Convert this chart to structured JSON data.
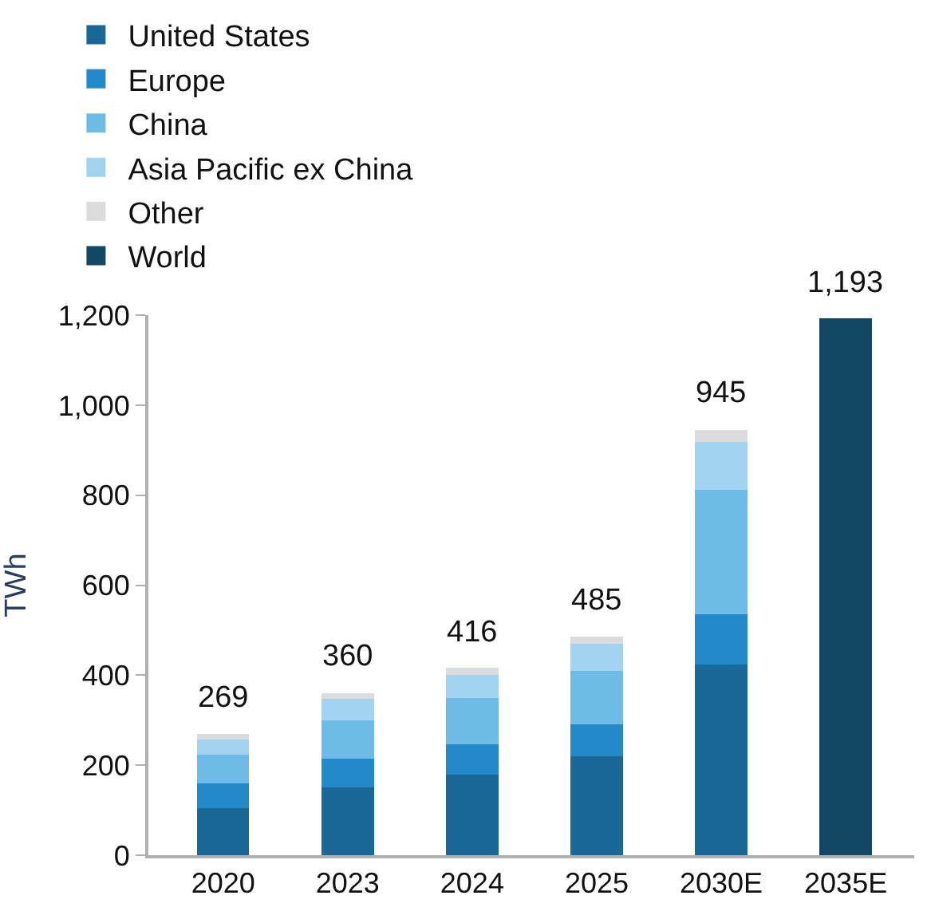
{
  "chart_data": {
    "type": "bar",
    "stacked": true,
    "ylabel": "TWh",
    "categories": [
      "2020",
      "2023",
      "2024",
      "2025",
      "2030E",
      "2035E"
    ],
    "series": [
      {
        "name": "United States",
        "color": "#1a6898",
        "values": [
          104,
          150,
          179,
          219,
          423,
          null
        ]
      },
      {
        "name": "Europe",
        "color": "#228ac9",
        "values": [
          56,
          65,
          68,
          72,
          112,
          null
        ]
      },
      {
        "name": "China",
        "color": "#6fbbe8",
        "values": [
          63,
          85,
          102,
          118,
          277,
          null
        ]
      },
      {
        "name": "Asia Pacific ex China",
        "color": "#a2d3f1",
        "values": [
          34,
          48,
          52,
          60,
          106,
          null
        ]
      },
      {
        "name": "Other",
        "color": "#dcdcdc",
        "values": [
          12,
          12,
          15,
          16,
          27,
          null
        ]
      },
      {
        "name": "World",
        "color": "#134864",
        "values": [
          null,
          null,
          null,
          null,
          null,
          1193
        ]
      }
    ],
    "totals": [
      "269",
      "360",
      "416",
      "485",
      "945",
      "1,193"
    ],
    "ylim": [
      0,
      1200
    ],
    "yticks": [
      0,
      {
        "value": 200,
        "label": "200"
      },
      {
        "value": 400,
        "label": "400"
      },
      {
        "value": 600,
        "label": "600"
      },
      {
        "value": 800,
        "label": "800"
      },
      {
        "value": 1000,
        "label": "1,000"
      },
      {
        "value": 1200,
        "label": "1,200"
      }
    ],
    "legend": "top"
  }
}
